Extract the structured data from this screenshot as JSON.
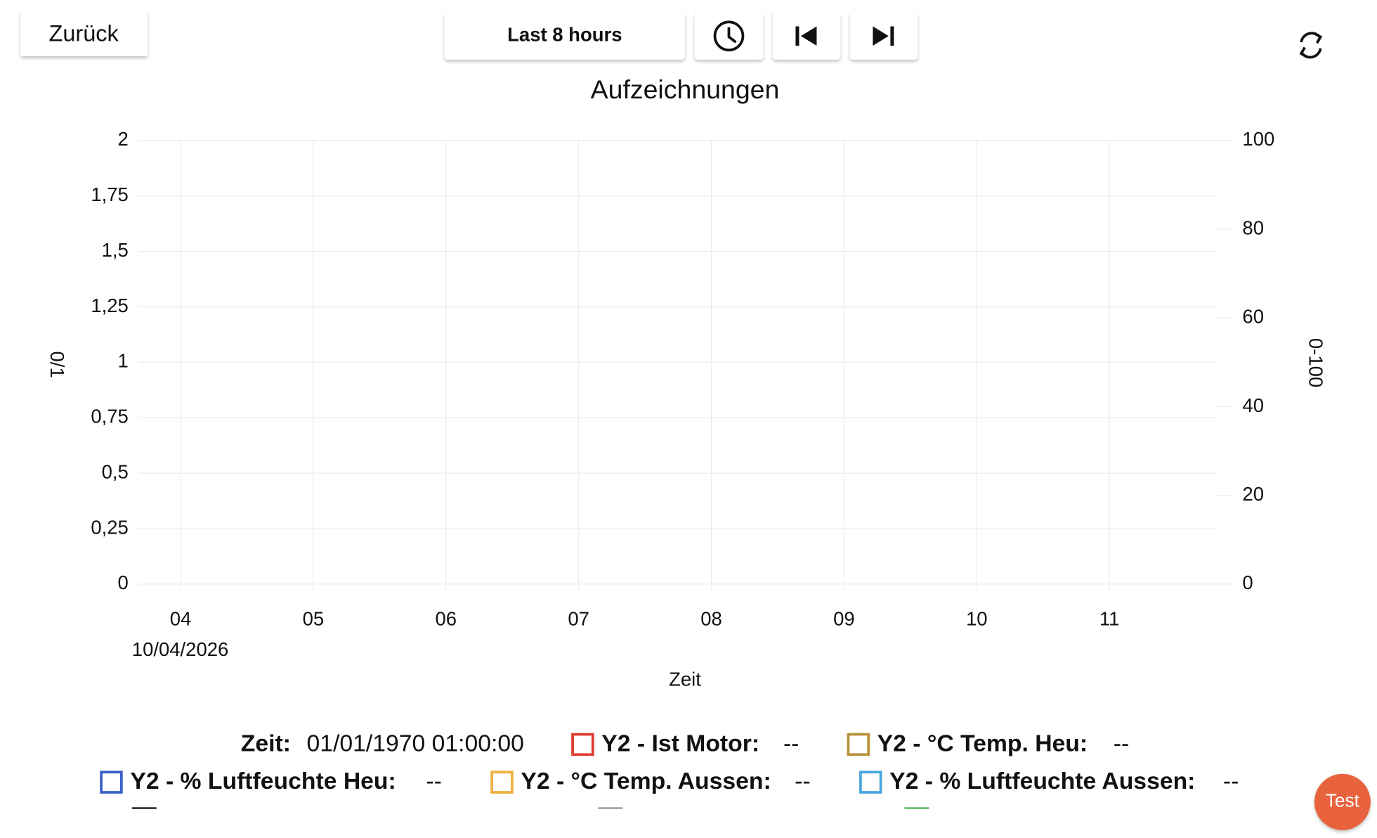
{
  "header": {
    "back": "Zurück",
    "range": "Last 8 hours"
  },
  "chart_data": {
    "type": "line",
    "title": "Aufzeichnungen",
    "x_label": "Zeit",
    "y_label": "0/1",
    "y2_label": "0-100",
    "xlim": [
      3.68,
      11.81
    ],
    "xticks": [
      {
        "value": 4,
        "label": "04"
      },
      {
        "value": 5,
        "label": "05"
      },
      {
        "value": 6,
        "label": "06"
      },
      {
        "value": 7,
        "label": "07"
      },
      {
        "value": 8,
        "label": "08"
      },
      {
        "value": 9,
        "label": "09"
      },
      {
        "value": 10,
        "label": "10"
      },
      {
        "value": 11,
        "label": "11"
      }
    ],
    "x_date": "10/04/2026",
    "ylim": [
      0,
      2
    ],
    "yticks": [
      0,
      {
        "value": 0.25,
        "label": "0,25"
      },
      {
        "value": 0.5,
        "label": "0,5"
      },
      {
        "value": 0.75,
        "label": "0,75"
      },
      1,
      {
        "value": 1.25,
        "label": "1,25"
      },
      {
        "value": 1.5,
        "label": "1,5"
      },
      {
        "value": 1.75,
        "label": "1,75"
      },
      2
    ],
    "y2lim": [
      0,
      100
    ],
    "y2ticks": [
      0,
      20,
      40,
      60,
      80,
      100
    ],
    "grid": true,
    "series": [
      {
        "name": "Y2 - Ist Motor:",
        "color": "#e03c31",
        "axis": "y2",
        "values": [],
        "current": "--"
      },
      {
        "name": "Y2 - °C Temp. Heu:",
        "color": "#b8923a",
        "axis": "y2",
        "values": [],
        "current": "--"
      },
      {
        "name": "Y2 - % Luftfeuchte Heu:",
        "color": "#3b5fc8",
        "axis": "y2",
        "values": [],
        "current": "--"
      },
      {
        "name": "Y2 - °C Temp. Aussen:",
        "color": "#f0b03f",
        "axis": "y2",
        "values": [],
        "current": "--"
      },
      {
        "name": "Y2 - % Luftfeuchte Aussen:",
        "color": "#4aa6e0",
        "axis": "y2",
        "values": [],
        "current": "--"
      }
    ]
  },
  "legend": {
    "time_label": "Zeit:",
    "time_value": "01/01/1970 01:00:00"
  },
  "test_button": "Test"
}
